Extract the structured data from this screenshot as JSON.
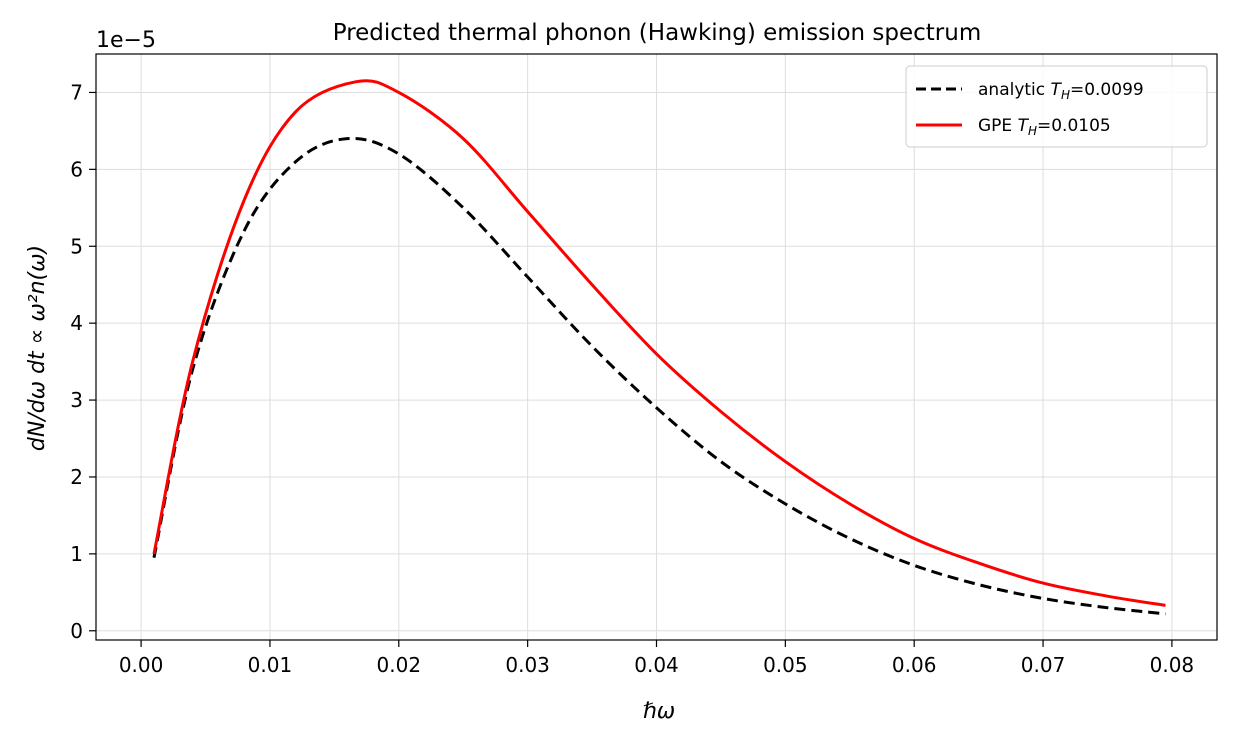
{
  "chart_data": {
    "type": "line",
    "title": "Predicted thermal phonon (Hawking) emission spectrum",
    "xlabel": "ℏω",
    "ylabel": "dN/dω dt ∝ ω²n(ω)",
    "y_offset_label": "1e−5",
    "y_scale": 1e-05,
    "xlim": [
      -0.0035,
      0.0835
    ],
    "ylim": [
      -0.12,
      7.5
    ],
    "xticks": [
      0.0,
      0.01,
      0.02,
      0.03,
      0.04,
      0.05,
      0.06,
      0.07,
      0.08
    ],
    "xtick_labels": [
      "0.00",
      "0.01",
      "0.02",
      "0.03",
      "0.04",
      "0.05",
      "0.06",
      "0.07",
      "0.08"
    ],
    "yticks": [
      0,
      1,
      2,
      3,
      4,
      5,
      6,
      7
    ],
    "ytick_labels": [
      "0",
      "1",
      "2",
      "3",
      "4",
      "5",
      "6",
      "7"
    ],
    "grid": true,
    "legend_position": "top-right",
    "series": [
      {
        "name": "analytic T_H=0.0099",
        "color": "#000000",
        "style": "dashed",
        "x": [
          0.001,
          0.004,
          0.008,
          0.012,
          0.016,
          0.02,
          0.025,
          0.03,
          0.035,
          0.04,
          0.045,
          0.05,
          0.055,
          0.06,
          0.065,
          0.07,
          0.075,
          0.0795
        ],
        "y": [
          0.95,
          3.4,
          5.2,
          6.1,
          6.4,
          6.2,
          5.5,
          4.6,
          3.7,
          2.9,
          2.2,
          1.65,
          1.2,
          0.85,
          0.6,
          0.42,
          0.3,
          0.22
        ]
      },
      {
        "name": "GPE T_H=0.0105",
        "color": "#ff0000",
        "style": "solid",
        "x": [
          0.001,
          0.004,
          0.008,
          0.012,
          0.0167,
          0.02,
          0.025,
          0.03,
          0.035,
          0.04,
          0.045,
          0.05,
          0.055,
          0.06,
          0.065,
          0.07,
          0.075,
          0.0795
        ],
        "y": [
          1.0,
          3.5,
          5.6,
          6.75,
          7.14,
          7.0,
          6.4,
          5.45,
          4.5,
          3.6,
          2.85,
          2.2,
          1.65,
          1.2,
          0.88,
          0.62,
          0.45,
          0.33
        ]
      }
    ],
    "legend_labels": [
      {
        "prefix": "analytic ",
        "sym": "T",
        "sub": "H",
        "suffix": "=0.0099"
      },
      {
        "prefix": "GPE ",
        "sym": "T",
        "sub": "H",
        "suffix": "=0.0105"
      }
    ]
  }
}
